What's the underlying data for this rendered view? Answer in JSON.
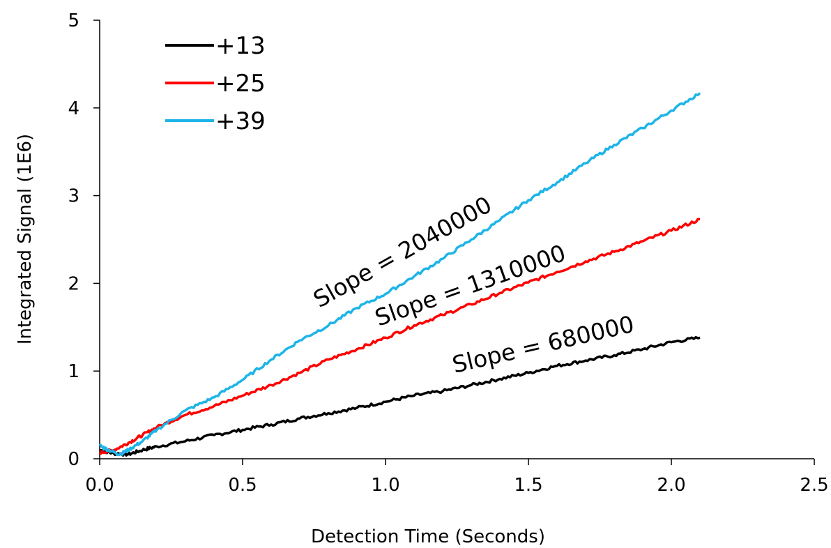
{
  "chart_data": {
    "type": "line",
    "title": "",
    "xlabel": "Detection Time (Seconds)",
    "ylabel": "Integrated Signal (1E6)",
    "xlim": [
      0,
      2.5
    ],
    "ylim": [
      0,
      5
    ],
    "xticks": [
      "0.0",
      "0.5",
      "1.0",
      "1.5",
      "2.0",
      "2.5"
    ],
    "yticks": [
      "0",
      "1",
      "2",
      "3",
      "4",
      "5"
    ],
    "grid": false,
    "legend_position": "top-left",
    "series": [
      {
        "name": "+13",
        "color": "#000000",
        "x": [
          0.0,
          0.05,
          0.1,
          0.15,
          0.2,
          0.3,
          0.4,
          0.5,
          0.6,
          0.7,
          0.8,
          0.9,
          1.0,
          1.1,
          1.2,
          1.3,
          1.4,
          1.5,
          1.6,
          1.7,
          1.8,
          1.9,
          2.0,
          2.1
        ],
        "y": [
          0.1,
          0.06,
          0.05,
          0.1,
          0.14,
          0.2,
          0.27,
          0.33,
          0.39,
          0.46,
          0.52,
          0.58,
          0.65,
          0.72,
          0.77,
          0.84,
          0.91,
          0.98,
          1.06,
          1.12,
          1.18,
          1.25,
          1.33,
          1.38
        ]
      },
      {
        "name": "+25",
        "color": "#ff0000",
        "x": [
          0.0,
          0.05,
          0.1,
          0.15,
          0.2,
          0.3,
          0.4,
          0.5,
          0.6,
          0.7,
          0.8,
          0.9,
          1.0,
          1.1,
          1.2,
          1.3,
          1.4,
          1.5,
          1.6,
          1.7,
          1.8,
          1.9,
          2.0,
          2.1
        ],
        "y": [
          0.07,
          0.1,
          0.18,
          0.27,
          0.36,
          0.5,
          0.6,
          0.72,
          0.84,
          0.98,
          1.13,
          1.25,
          1.38,
          1.52,
          1.64,
          1.76,
          1.89,
          2.01,
          2.13,
          2.25,
          2.36,
          2.48,
          2.6,
          2.73
        ]
      },
      {
        "name": "+39",
        "color": "#1eb4e8",
        "x": [
          0.0,
          0.03,
          0.07,
          0.1,
          0.15,
          0.2,
          0.3,
          0.4,
          0.5,
          0.6,
          0.7,
          0.8,
          0.9,
          1.0,
          1.1,
          1.2,
          1.3,
          1.4,
          1.5,
          1.6,
          1.7,
          1.8,
          1.9,
          2.0,
          2.1
        ],
        "y": [
          0.15,
          0.1,
          0.05,
          0.1,
          0.2,
          0.33,
          0.55,
          0.7,
          0.9,
          1.13,
          1.35,
          1.52,
          1.72,
          1.88,
          2.08,
          2.28,
          2.5,
          2.72,
          2.95,
          3.15,
          3.37,
          3.58,
          3.77,
          3.97,
          4.17
        ]
      }
    ],
    "annotations": [
      {
        "text": "Slope = 2040000"
      },
      {
        "text": "Slope = 1310000"
      },
      {
        "text": "Slope = 680000"
      }
    ]
  }
}
